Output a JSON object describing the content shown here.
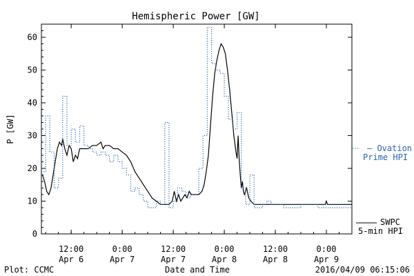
{
  "chart_data": {
    "type": "line",
    "title": "Hemispheric Power [GW]",
    "ylabel": "P [GW]",
    "xlabel": "Date and Time",
    "ylim": [
      0,
      64
    ],
    "y_ticks": [
      0,
      10,
      20,
      30,
      40,
      50,
      60
    ],
    "xlim": [
      "2016-04-06 05:00",
      "2016-04-09 06:00"
    ],
    "x_ticks": [
      {
        "time": "2016-04-06 12:00",
        "line1": "12:00",
        "line2": "Apr 6"
      },
      {
        "time": "2016-04-07 00:00",
        "line1": "0:00",
        "line2": "Apr 7"
      },
      {
        "time": "2016-04-07 12:00",
        "line1": "12:00",
        "line2": "Apr 7"
      },
      {
        "time": "2016-04-08 00:00",
        "line1": "0:00",
        "line2": "Apr 8"
      },
      {
        "time": "2016-04-08 12:00",
        "line1": "12:00",
        "line2": "Apr 8"
      },
      {
        "time": "2016-04-09 00:00",
        "line1": "0:00",
        "line2": "Apr 9"
      }
    ],
    "legend": [
      {
        "line1": "— Ovation",
        "line2": "Prime HPI",
        "color": "#2a64b4"
      },
      {
        "line1": "SWPC",
        "line2": "5-min HPI",
        "color": "#000000"
      }
    ],
    "series": [
      {
        "name": "SWPC 5-min HPI",
        "color": "#000000",
        "style": "solid",
        "points": [
          [
            "2016-04-06 05:15",
            18
          ],
          [
            "2016-04-06 05:45",
            16
          ],
          [
            "2016-04-06 06:15",
            13
          ],
          [
            "2016-04-06 06:45",
            12
          ],
          [
            "2016-04-06 07:15",
            14
          ],
          [
            "2016-04-06 07:45",
            18
          ],
          [
            "2016-04-06 08:15",
            22
          ],
          [
            "2016-04-06 08:45",
            26
          ],
          [
            "2016-04-06 09:15",
            28
          ],
          [
            "2016-04-06 09:45",
            27
          ],
          [
            "2016-04-06 10:00",
            29
          ],
          [
            "2016-04-06 10:30",
            26
          ],
          [
            "2016-04-06 11:00",
            24
          ],
          [
            "2016-04-06 11:30",
            27
          ],
          [
            "2016-04-06 12:00",
            26
          ],
          [
            "2016-04-06 12:30",
            22
          ],
          [
            "2016-04-06 13:00",
            24
          ],
          [
            "2016-04-06 13:30",
            23
          ],
          [
            "2016-04-06 14:00",
            26
          ],
          [
            "2016-04-06 15:00",
            26
          ],
          [
            "2016-04-06 16:00",
            26
          ],
          [
            "2016-04-06 17:00",
            27
          ],
          [
            "2016-04-06 18:00",
            27
          ],
          [
            "2016-04-06 19:00",
            28
          ],
          [
            "2016-04-06 19:30",
            26
          ],
          [
            "2016-04-06 20:00",
            27
          ],
          [
            "2016-04-06 21:00",
            27
          ],
          [
            "2016-04-06 22:00",
            26
          ],
          [
            "2016-04-06 23:00",
            26
          ],
          [
            "2016-04-07 00:00",
            25
          ],
          [
            "2016-04-07 01:00",
            24
          ],
          [
            "2016-04-07 02:00",
            22
          ],
          [
            "2016-04-07 03:00",
            19
          ],
          [
            "2016-04-07 04:00",
            17
          ],
          [
            "2016-04-07 05:00",
            15
          ],
          [
            "2016-04-07 06:00",
            13
          ],
          [
            "2016-04-07 07:00",
            11
          ],
          [
            "2016-04-07 08:00",
            10
          ],
          [
            "2016-04-07 09:00",
            9
          ],
          [
            "2016-04-07 10:00",
            9
          ],
          [
            "2016-04-07 11:00",
            9
          ],
          [
            "2016-04-07 11:45",
            10
          ],
          [
            "2016-04-07 12:15",
            13
          ],
          [
            "2016-04-07 12:45",
            10
          ],
          [
            "2016-04-07 13:15",
            12
          ],
          [
            "2016-04-07 13:45",
            10
          ],
          [
            "2016-04-07 14:15",
            11
          ],
          [
            "2016-04-07 14:45",
            12
          ],
          [
            "2016-04-07 15:15",
            11
          ],
          [
            "2016-04-07 15:45",
            13
          ],
          [
            "2016-04-07 16:15",
            12
          ],
          [
            "2016-04-07 17:00",
            12
          ],
          [
            "2016-04-07 18:00",
            12
          ],
          [
            "2016-04-07 18:45",
            13
          ],
          [
            "2016-04-07 19:15",
            15
          ],
          [
            "2016-04-07 19:45",
            19
          ],
          [
            "2016-04-07 20:15",
            24
          ],
          [
            "2016-04-07 20:45",
            33
          ],
          [
            "2016-04-07 21:15",
            42
          ],
          [
            "2016-04-07 21:45",
            49
          ],
          [
            "2016-04-07 22:15",
            53
          ],
          [
            "2016-04-07 22:45",
            56
          ],
          [
            "2016-04-07 23:15",
            58
          ],
          [
            "2016-04-07 23:45",
            57
          ],
          [
            "2016-04-08 00:15",
            55
          ],
          [
            "2016-04-08 00:45",
            50
          ],
          [
            "2016-04-08 01:15",
            44
          ],
          [
            "2016-04-08 01:45",
            37
          ],
          [
            "2016-04-08 02:15",
            30
          ],
          [
            "2016-04-08 02:45",
            25
          ],
          [
            "2016-04-08 03:00",
            23
          ],
          [
            "2016-04-08 03:15",
            30
          ],
          [
            "2016-04-08 03:30",
            23
          ],
          [
            "2016-04-08 03:45",
            18
          ],
          [
            "2016-04-08 04:00",
            14
          ],
          [
            "2016-04-08 04:15",
            16
          ],
          [
            "2016-04-08 04:30",
            13
          ],
          [
            "2016-04-08 04:45",
            12
          ],
          [
            "2016-04-08 05:15",
            14
          ],
          [
            "2016-04-08 05:45",
            11
          ],
          [
            "2016-04-08 06:15",
            10
          ],
          [
            "2016-04-08 07:00",
            9
          ],
          [
            "2016-04-08 08:00",
            9
          ],
          [
            "2016-04-08 10:00",
            9
          ],
          [
            "2016-04-08 14:00",
            9
          ],
          [
            "2016-04-08 18:00",
            9
          ],
          [
            "2016-04-08 22:00",
            9
          ],
          [
            "2016-04-08 23:45",
            9
          ],
          [
            "2016-04-09 00:00",
            10
          ],
          [
            "2016-04-09 00:15",
            9
          ],
          [
            "2016-04-09 03:00",
            9
          ],
          [
            "2016-04-09 06:00",
            9
          ]
        ]
      },
      {
        "name": "Ovation Prime HPI",
        "color": "#2a64b4",
        "style": "dotted",
        "step": true,
        "points": [
          [
            "2016-04-06 05:00",
            19
          ],
          [
            "2016-04-06 06:00",
            36
          ],
          [
            "2016-04-06 07:00",
            25
          ],
          [
            "2016-04-06 08:00",
            14
          ],
          [
            "2016-04-06 09:00",
            17
          ],
          [
            "2016-04-06 10:00",
            42
          ],
          [
            "2016-04-06 11:00",
            27
          ],
          [
            "2016-04-06 12:00",
            32
          ],
          [
            "2016-04-06 13:00",
            28
          ],
          [
            "2016-04-06 14:00",
            33
          ],
          [
            "2016-04-06 15:00",
            27
          ],
          [
            "2016-04-06 16:00",
            26
          ],
          [
            "2016-04-06 17:00",
            25
          ],
          [
            "2016-04-06 18:00",
            24
          ],
          [
            "2016-04-06 19:00",
            25
          ],
          [
            "2016-04-06 20:00",
            24
          ],
          [
            "2016-04-06 21:00",
            22
          ],
          [
            "2016-04-06 22:00",
            24
          ],
          [
            "2016-04-06 23:00",
            22
          ],
          [
            "2016-04-07 00:00",
            20
          ],
          [
            "2016-04-07 01:00",
            18
          ],
          [
            "2016-04-07 02:00",
            13
          ],
          [
            "2016-04-07 03:00",
            14
          ],
          [
            "2016-04-07 04:00",
            12
          ],
          [
            "2016-04-07 05:00",
            10
          ],
          [
            "2016-04-07 06:00",
            8
          ],
          [
            "2016-04-07 08:00",
            10
          ],
          [
            "2016-04-07 09:00",
            9
          ],
          [
            "2016-04-07 10:00",
            34
          ],
          [
            "2016-04-07 11:00",
            8
          ],
          [
            "2016-04-07 12:00",
            10
          ],
          [
            "2016-04-07 13:00",
            14
          ],
          [
            "2016-04-07 14:00",
            13
          ],
          [
            "2016-04-07 15:00",
            11
          ],
          [
            "2016-04-07 16:00",
            12
          ],
          [
            "2016-04-07 17:00",
            12
          ],
          [
            "2016-04-07 18:00",
            20
          ],
          [
            "2016-04-07 19:00",
            30
          ],
          [
            "2016-04-07 20:00",
            63
          ],
          [
            "2016-04-07 21:00",
            52
          ],
          [
            "2016-04-07 22:00",
            50
          ],
          [
            "2016-04-07 23:00",
            49
          ],
          [
            "2016-04-08 00:00",
            42
          ],
          [
            "2016-04-08 01:00",
            35
          ],
          [
            "2016-04-08 02:00",
            32
          ],
          [
            "2016-04-08 03:00",
            37
          ],
          [
            "2016-04-08 04:00",
            14
          ],
          [
            "2016-04-08 05:00",
            9
          ],
          [
            "2016-04-08 06:00",
            18
          ],
          [
            "2016-04-08 07:00",
            8
          ],
          [
            "2016-04-08 09:00",
            9
          ],
          [
            "2016-04-08 10:00",
            10
          ],
          [
            "2016-04-08 11:00",
            9
          ],
          [
            "2016-04-08 12:00",
            9
          ],
          [
            "2016-04-08 14:00",
            8
          ],
          [
            "2016-04-08 18:00",
            9
          ],
          [
            "2016-04-08 22:00",
            8
          ],
          [
            "2016-04-09 00:00",
            8
          ],
          [
            "2016-04-09 06:00",
            8
          ]
        ]
      }
    ]
  },
  "footer": {
    "left": "Plot: CCMC",
    "right": "2016/04/09 06:15:06"
  }
}
